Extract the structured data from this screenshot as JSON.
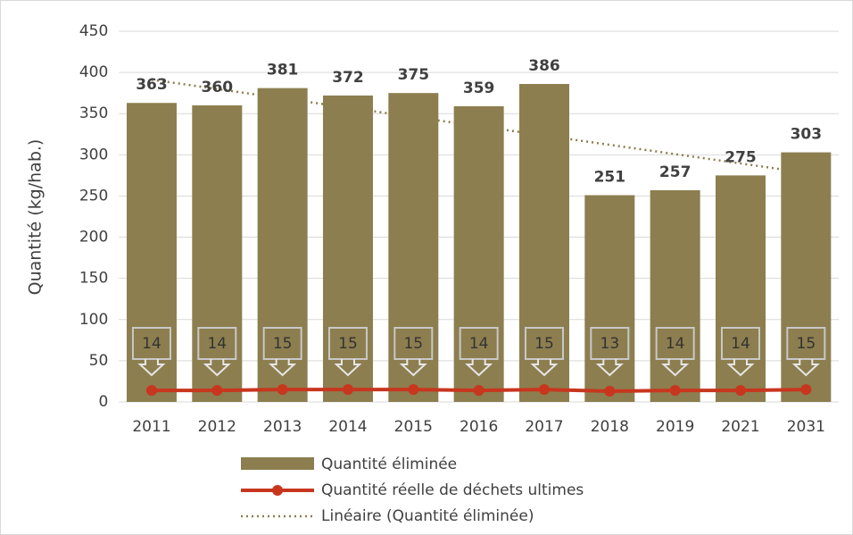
{
  "chart_data": {
    "type": "bar",
    "categories": [
      "2011",
      "2012",
      "2013",
      "2014",
      "2015",
      "2016",
      "2017",
      "2018",
      "2019",
      "2021",
      "2031"
    ],
    "series": [
      {
        "name": "Quantité éliminée",
        "type": "bar",
        "color": "#8c7e4f",
        "values": [
          363,
          360,
          381,
          372,
          375,
          359,
          386,
          251,
          257,
          275,
          303
        ]
      },
      {
        "name": "Quantité réelle de déchets ultimes",
        "type": "line",
        "color": "#c8361e",
        "values": [
          14,
          14,
          15,
          15,
          15,
          14,
          15,
          13,
          14,
          14,
          15
        ]
      }
    ],
    "trendline": {
      "name": "Linéaire (Quantité éliminée)",
      "color": "#8c7e4f"
    },
    "y_label": "Quantité (kg/hab.)",
    "ylim": [
      0,
      450
    ],
    "yticks": [
      0,
      50,
      100,
      150,
      200,
      250,
      300,
      350,
      400,
      450
    ],
    "grid": true
  }
}
